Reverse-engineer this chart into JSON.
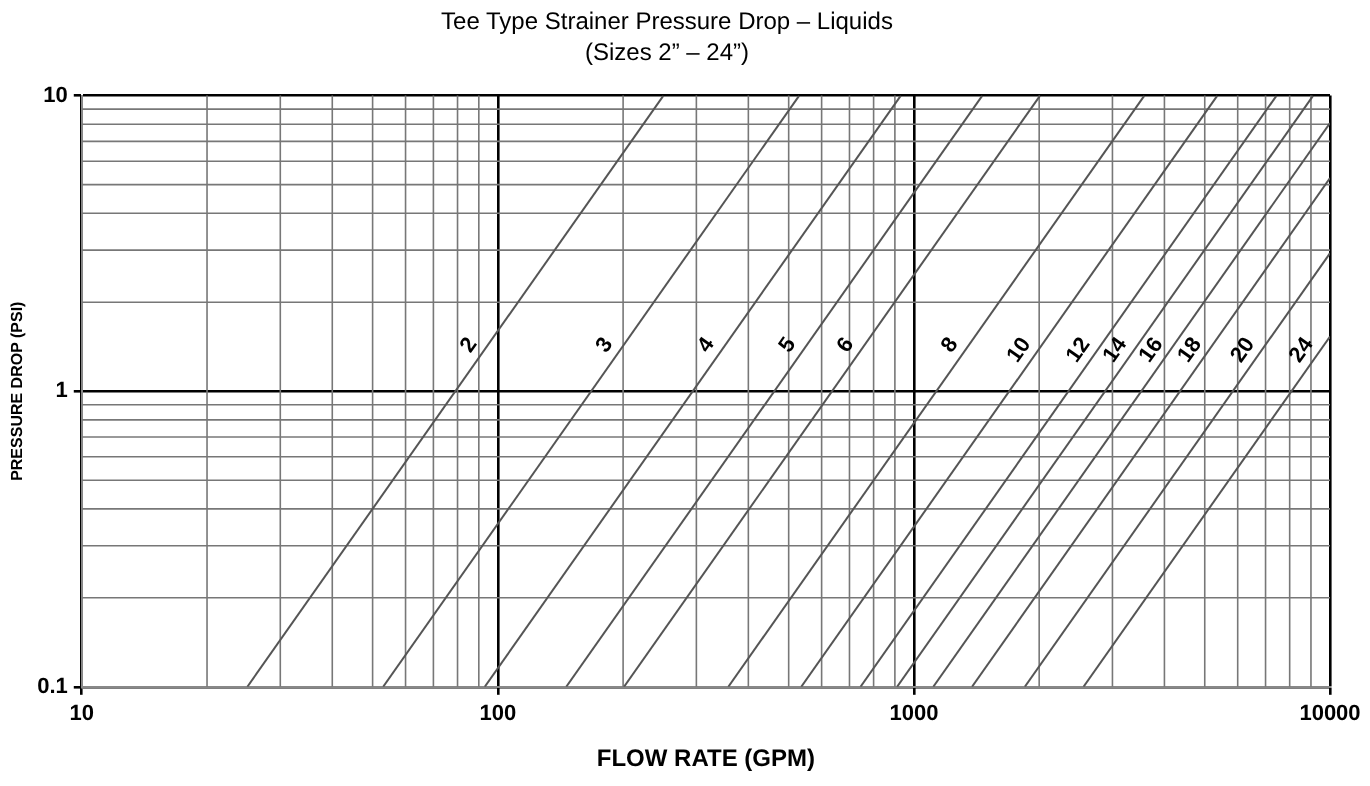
{
  "chart_data": {
    "type": "line",
    "title": "Tee Type Strainer Pressure Drop – Liquids",
    "subtitle": "(Sizes 2” – 24”)",
    "xlabel": "FLOW RATE (GPM)",
    "ylabel": "PRESSURE DROP (PSI)",
    "log": "xy",
    "xlim": [
      10,
      10000
    ],
    "ylim": [
      0.1,
      10
    ],
    "xticks": [
      10,
      100,
      1000,
      10000
    ],
    "yticks": [
      0.1,
      1,
      10
    ],
    "grid": true,
    "legend": false,
    "marker": "none",
    "line_style": "solid",
    "series": [
      {
        "name": "2",
        "color": "#555555",
        "x": [
          25,
          250
        ],
        "values": [
          0.1,
          10
        ]
      },
      {
        "name": "3",
        "color": "#555555",
        "x": [
          53,
          530
        ],
        "values": [
          0.1,
          10
        ]
      },
      {
        "name": "4",
        "color": "#555555",
        "x": [
          93,
          930
        ],
        "values": [
          0.1,
          10
        ]
      },
      {
        "name": "5",
        "color": "#555555",
        "x": [
          146,
          1460
        ],
        "values": [
          0.1,
          10
        ]
      },
      {
        "name": "6",
        "color": "#555555",
        "x": [
          201,
          2010
        ],
        "values": [
          0.1,
          10
        ]
      },
      {
        "name": "8",
        "color": "#555555",
        "x": [
          358,
          3580
        ],
        "values": [
          0.1,
          10
        ]
      },
      {
        "name": "10",
        "color": "#555555",
        "x": [
          536,
          5360
        ],
        "values": [
          0.1,
          10
        ]
      },
      {
        "name": "12",
        "color": "#555555",
        "x": [
          744,
          7440
        ],
        "values": [
          0.1,
          10
        ]
      },
      {
        "name": "14",
        "color": "#555555",
        "x": [
          911,
          9110
        ],
        "values": [
          0.1,
          10
        ]
      },
      {
        "name": "16",
        "color": "#555555",
        "x": [
          1113,
          10000
        ],
        "values": [
          0.1,
          8.07
        ]
      },
      {
        "name": "18",
        "color": "#555555",
        "x": [
          1379,
          10000
        ],
        "values": [
          0.1,
          5.26
        ]
      },
      {
        "name": "20",
        "color": "#555555",
        "x": [
          1847,
          10000
        ],
        "values": [
          0.1,
          2.93
        ]
      },
      {
        "name": "24",
        "color": "#555555",
        "x": [
          2556,
          10000
        ],
        "values": [
          0.1,
          1.53
        ]
      }
    ]
  }
}
